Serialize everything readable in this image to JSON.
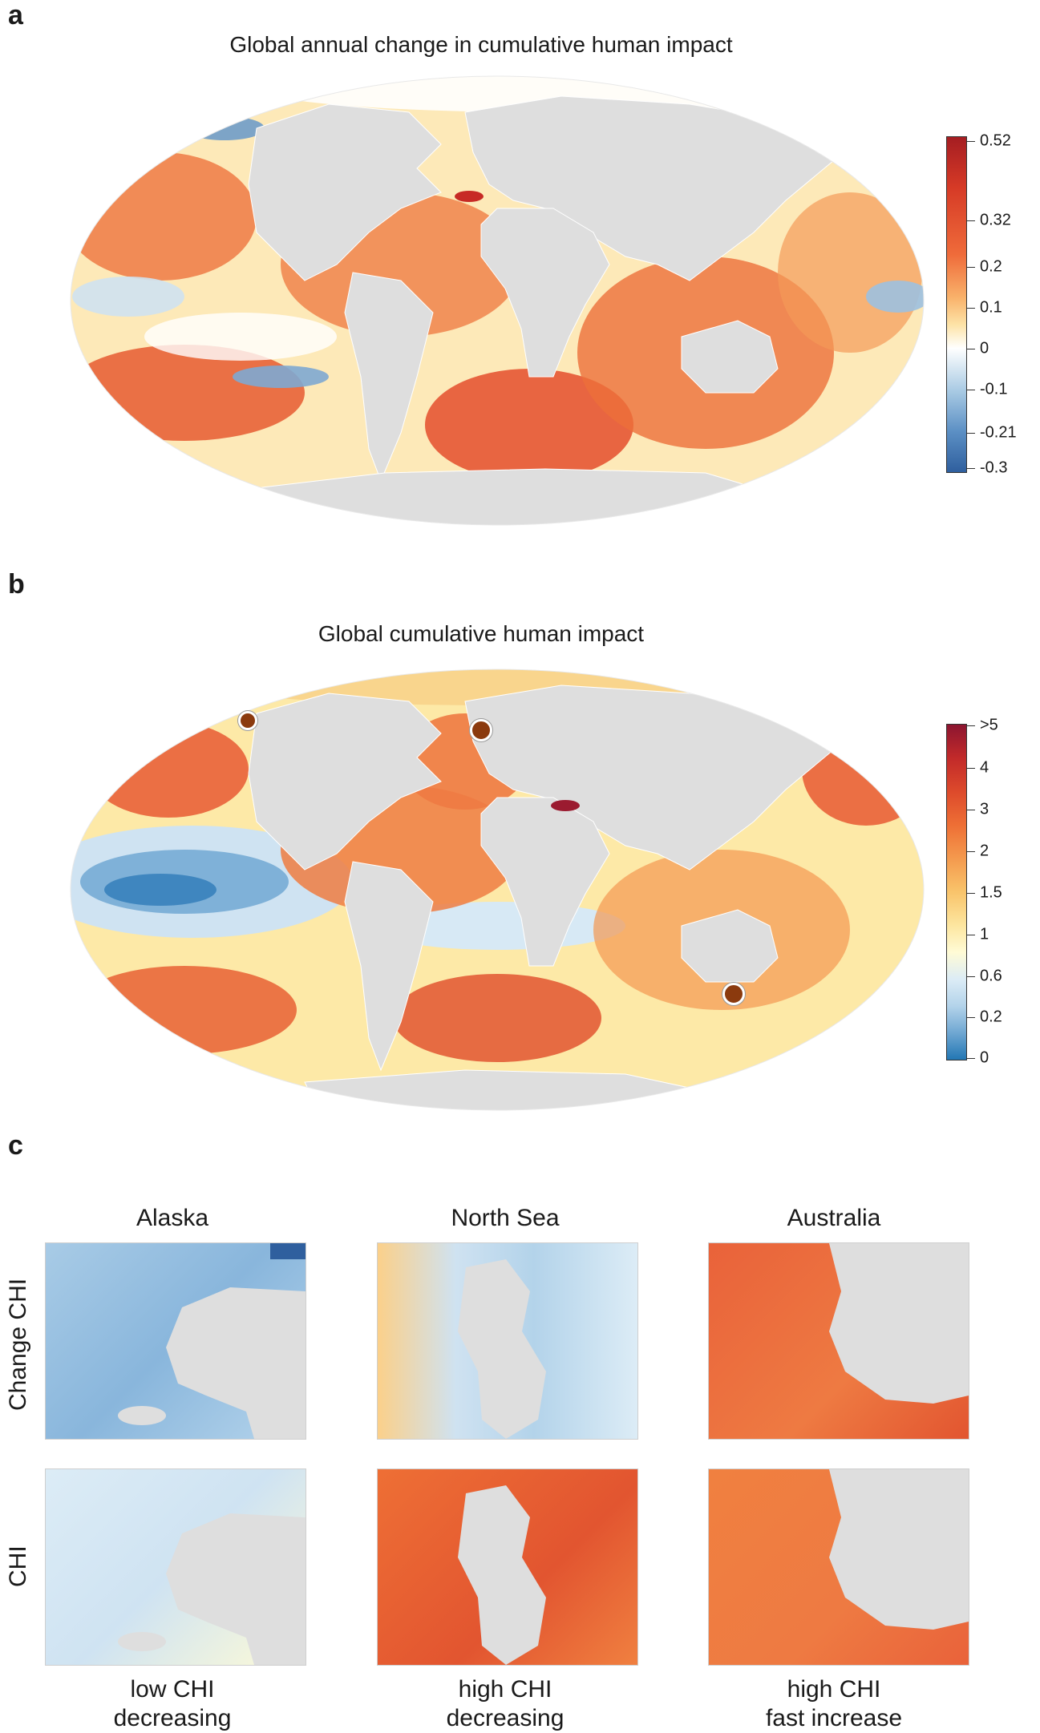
{
  "panels": {
    "a": {
      "letter": "a",
      "title": "Global annual change in cumulative human impact",
      "legend_ticks": [
        "0.52",
        "0.32",
        "0.2",
        "0.1",
        "0",
        "-0.1",
        "-0.21",
        "-0.3"
      ],
      "legend_tick_values": [
        0.52,
        0.32,
        0.2,
        0.1,
        0,
        -0.1,
        -0.21,
        -0.3
      ],
      "legend_colors": [
        "#2f5f9e",
        "#5b8fc4",
        "#a7c9e3",
        "#ffffff",
        "#fde3a7",
        "#f9b26b",
        "#ef6b3a",
        "#d63a26",
        "#a51d22"
      ]
    },
    "b": {
      "letter": "b",
      "title": "Global cumulative human impact",
      "legend_ticks": [
        ">5",
        "4",
        "3",
        "2",
        "1.5",
        "1",
        "0.6",
        "0.2",
        "0"
      ],
      "legend_colors": [
        "#2277b4",
        "#6fa7d2",
        "#b3d3ea",
        "#dcecf6",
        "#fffbd6",
        "#fde6a0",
        "#f9c46b",
        "#f49a4e",
        "#ee6f35",
        "#dd4a2b",
        "#c22a2a",
        "#8c1530"
      ]
    },
    "c": {
      "letter": "c",
      "regions": [
        "Alaska",
        "North Sea",
        "Australia"
      ],
      "row_labels": [
        "Change CHI",
        "CHI"
      ],
      "captions": [
        [
          "low CHI",
          "decreasing"
        ],
        [
          "high CHI",
          "decreasing"
        ],
        [
          "high CHI",
          "fast increase"
        ]
      ]
    }
  },
  "colors": {
    "land": "#dedede",
    "land_border": "#ffffff",
    "marker": "#8b3a0e"
  }
}
